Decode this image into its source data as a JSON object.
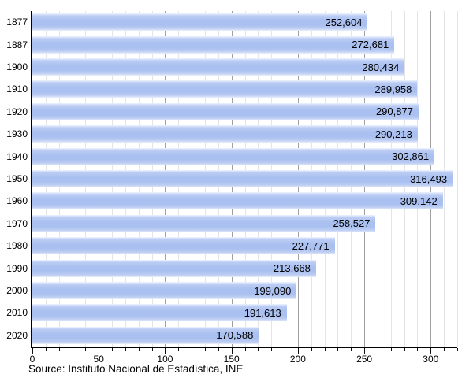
{
  "chart_data": {
    "type": "bar",
    "orientation": "horizontal",
    "title": "",
    "xlabel": "",
    "ylabel": "",
    "categories": [
      "1877",
      "1887",
      "1900",
      "1910",
      "1920",
      "1930",
      "1940",
      "1950",
      "1960",
      "1970",
      "1980",
      "1990",
      "2000",
      "2010",
      "2020"
    ],
    "values": [
      252604,
      272681,
      280434,
      289958,
      290877,
      290213,
      302861,
      316493,
      309142,
      258527,
      227771,
      213668,
      199090,
      191613,
      170588
    ],
    "value_labels": [
      "252,604",
      "272,681",
      "280,434",
      "289,958",
      "290,877",
      "290,213",
      "302,861",
      "316,493",
      "309,142",
      "258,527",
      "227,771",
      "213,668",
      "199,090",
      "191,613",
      "170,588"
    ],
    "x_axis": {
      "min": 0,
      "max": 320,
      "unit_scale": 1000,
      "major_step": 50,
      "minor_step": 10,
      "tick_labels": [
        "0",
        "50",
        "100",
        "150",
        "200",
        "250",
        "300"
      ]
    },
    "grid": "vertical, minor every 10, major every 50",
    "legend": "none",
    "source": "Source: Instituto Nacional de Estadística, INE",
    "colors": {
      "bar": "#aac0f0",
      "grid_minor": "#e4e4e4",
      "grid_major": "#a0a0a0",
      "axis": "#000000",
      "text": "#000000",
      "background": "#ffffff"
    }
  }
}
